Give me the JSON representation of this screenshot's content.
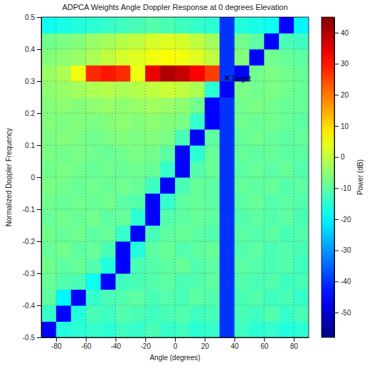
{
  "chart_data": {
    "type": "heatmap",
    "title": "ADPCA Weights Angle Doppler Response at 0 degrees Elevation",
    "x_label": "Angle (degrees)",
    "y_label": "Normalized Doppler Frequency",
    "colorbar_label": "Power (dB)",
    "xlim": [
      -90,
      90
    ],
    "xticks": [
      -80,
      -60,
      -40,
      -20,
      0,
      20,
      40,
      60,
      80
    ],
    "ylim": [
      -0.5,
      0.5
    ],
    "yticks": [
      -0.5,
      -0.4,
      -0.3,
      -0.2,
      -0.1,
      0,
      0.1,
      0.2,
      0.3,
      0.4,
      0.5
    ],
    "zlim": [
      -58,
      45
    ],
    "zticks": [
      -50,
      -40,
      -30,
      -20,
      -10,
      0,
      10,
      20,
      30,
      40
    ],
    "grid": true,
    "x": [
      -85,
      -75,
      -65,
      -55,
      -45,
      -35,
      -25,
      -15,
      -5,
      5,
      15,
      25,
      35,
      45,
      55,
      65,
      75,
      85
    ],
    "y": [
      -0.475,
      -0.425,
      -0.375,
      -0.325,
      -0.275,
      -0.225,
      -0.175,
      -0.125,
      -0.075,
      -0.025,
      0.025,
      0.075,
      0.125,
      0.175,
      0.225,
      0.275,
      0.325,
      0.375,
      0.425,
      0.475
    ],
    "z": [
      [
        -45,
        -16,
        -15,
        -14,
        -15,
        -13,
        -14,
        -12,
        -14,
        -13,
        -15,
        -14,
        -40,
        -13,
        -15,
        -14,
        -16,
        -15
      ],
      [
        -14,
        -45,
        -16,
        -12,
        -13,
        -11,
        -12,
        -13,
        -12,
        -11,
        -13,
        -12,
        -40,
        -12,
        -13,
        -11,
        -14,
        -12
      ],
      [
        -10,
        -20,
        -45,
        -14,
        -12,
        -11,
        -10,
        -12,
        -11,
        -12,
        -10,
        -11,
        -40,
        -12,
        -11,
        -13,
        -12,
        -14
      ],
      [
        -9,
        -11,
        -12,
        -18,
        -45,
        -13,
        -12,
        -11,
        -10,
        -12,
        -11,
        -10,
        -40,
        -11,
        -12,
        -11,
        -13,
        -12
      ],
      [
        -8,
        -10,
        -9,
        -11,
        -16,
        -45,
        -12,
        -11,
        -10,
        -9,
        -11,
        -10,
        -40,
        -10,
        -11,
        -12,
        -11,
        -13
      ],
      [
        -9,
        -8,
        -10,
        -9,
        -12,
        -45,
        -16,
        -10,
        -9,
        -11,
        -10,
        -9,
        -40,
        -11,
        -10,
        -12,
        -11,
        -12
      ],
      [
        -8,
        -9,
        -8,
        -10,
        -9,
        -14,
        -45,
        -12,
        -10,
        -9,
        -10,
        -11,
        -40,
        -10,
        -11,
        -10,
        -12,
        -11
      ],
      [
        -9,
        -8,
        -9,
        -8,
        -10,
        -9,
        -15,
        -45,
        -11,
        -10,
        -9,
        -10,
        -40,
        -11,
        -10,
        -11,
        -10,
        -12
      ],
      [
        -8,
        -9,
        -8,
        -9,
        -8,
        -10,
        -11,
        -45,
        -14,
        -10,
        -9,
        -10,
        -40,
        -10,
        -9,
        -11,
        -10,
        -11
      ],
      [
        -7,
        -8,
        -9,
        -8,
        -9,
        -8,
        -9,
        -13,
        -45,
        -12,
        -9,
        -10,
        -40,
        -9,
        -10,
        -9,
        -11,
        -10
      ],
      [
        -8,
        -7,
        -8,
        -9,
        -8,
        -9,
        -8,
        -9,
        -14,
        -45,
        -11,
        -9,
        -40,
        -10,
        -9,
        -10,
        -9,
        -11
      ],
      [
        -7,
        -8,
        -7,
        -8,
        -9,
        -8,
        -7,
        -8,
        -10,
        -45,
        -15,
        -9,
        -40,
        -9,
        -10,
        -9,
        -10,
        -10
      ],
      [
        -7,
        -6,
        -7,
        -8,
        -7,
        -6,
        -7,
        -6,
        -7,
        -12,
        -45,
        -10,
        -40,
        -9,
        -8,
        -9,
        -10,
        -9
      ],
      [
        -6,
        -7,
        -6,
        -7,
        -6,
        -5,
        -6,
        -5,
        -6,
        -7,
        -14,
        -45,
        -40,
        -8,
        -9,
        -8,
        -9,
        -10
      ],
      [
        -6,
        -5,
        -6,
        -5,
        -4,
        -5,
        -4,
        -3,
        -4,
        -5,
        -8,
        -45,
        -40,
        -8,
        -7,
        -8,
        -9,
        -9
      ],
      [
        -5,
        -4,
        -3,
        -2,
        -1,
        -2,
        -1,
        0,
        1,
        0,
        -2,
        -15,
        -45,
        -7,
        -8,
        -7,
        -8,
        -9
      ],
      [
        -4,
        -2,
        5,
        28,
        30,
        28,
        5,
        34,
        40,
        38,
        32,
        26,
        -40,
        -45,
        -8,
        -7,
        -8,
        -9
      ],
      [
        -6,
        -5,
        -4,
        -2,
        0,
        2,
        3,
        5,
        6,
        5,
        3,
        0,
        -40,
        -6,
        -45,
        -8,
        -9,
        -10
      ],
      [
        -8,
        -7,
        -6,
        -4,
        -3,
        -1,
        0,
        2,
        3,
        2,
        0,
        -3,
        -40,
        -8,
        -10,
        -45,
        -12,
        -13
      ],
      [
        -18,
        -17,
        -16,
        -15,
        -14,
        -13,
        -12,
        -11,
        -12,
        -13,
        -14,
        -15,
        -40,
        -16,
        -17,
        -18,
        -45,
        -20
      ]
    ],
    "annotations": [
      {
        "text": "Target",
        "x": 35,
        "y": 0.31
      }
    ]
  }
}
